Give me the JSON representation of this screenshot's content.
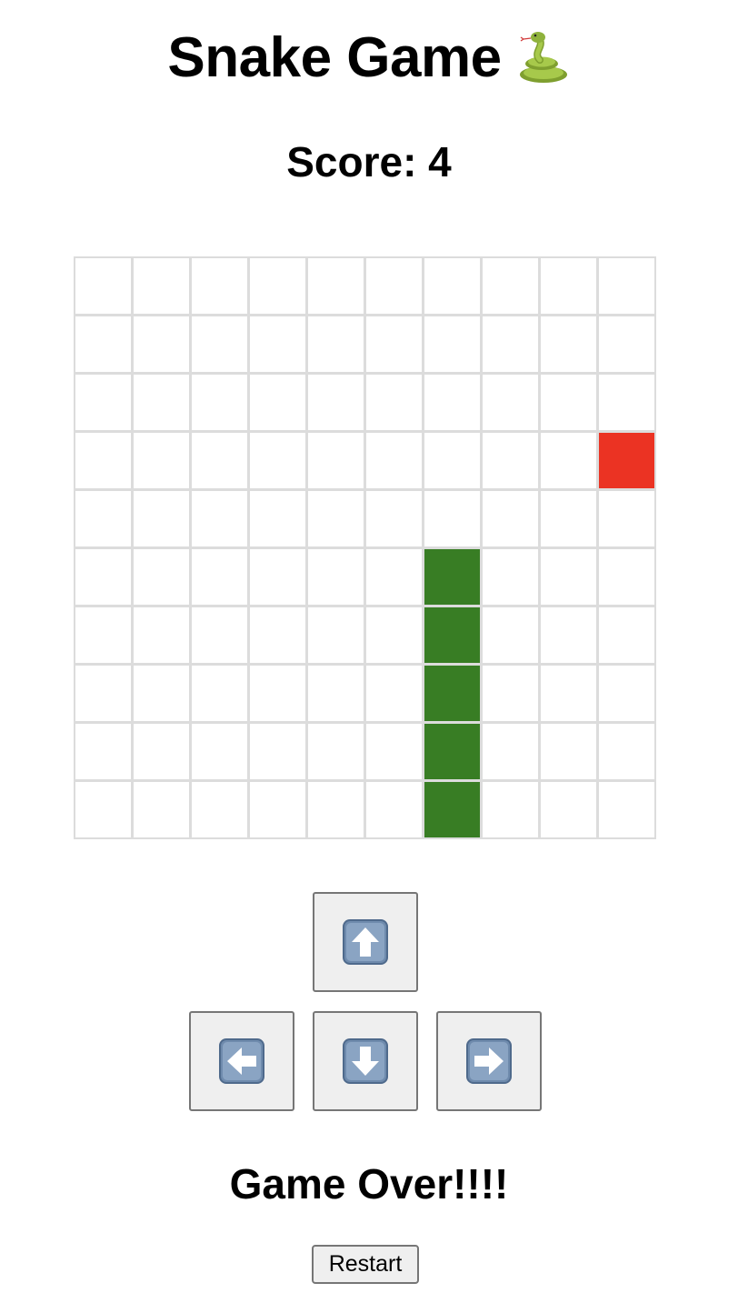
{
  "header": {
    "title": "Snake Game",
    "title_icon": "snake-icon"
  },
  "score": {
    "text": "Score: 4",
    "value": 4
  },
  "board": {
    "rows": 10,
    "cols": 10,
    "snake_cells": [
      [
        5,
        6
      ],
      [
        6,
        6
      ],
      [
        7,
        6
      ],
      [
        8,
        6
      ],
      [
        9,
        6
      ]
    ],
    "food_cell": [
      3,
      9
    ],
    "colors": {
      "snake": "#387d24",
      "food": "#eb3323",
      "grid_line": "#dcdcdc",
      "empty": "#ffffff"
    }
  },
  "controls": {
    "up_icon": "arrow-up-icon",
    "left_icon": "arrow-left-icon",
    "down_icon": "arrow-down-icon",
    "right_icon": "arrow-right-icon"
  },
  "status": {
    "message": "Game Over!!!!"
  },
  "restart": {
    "label": "Restart"
  }
}
